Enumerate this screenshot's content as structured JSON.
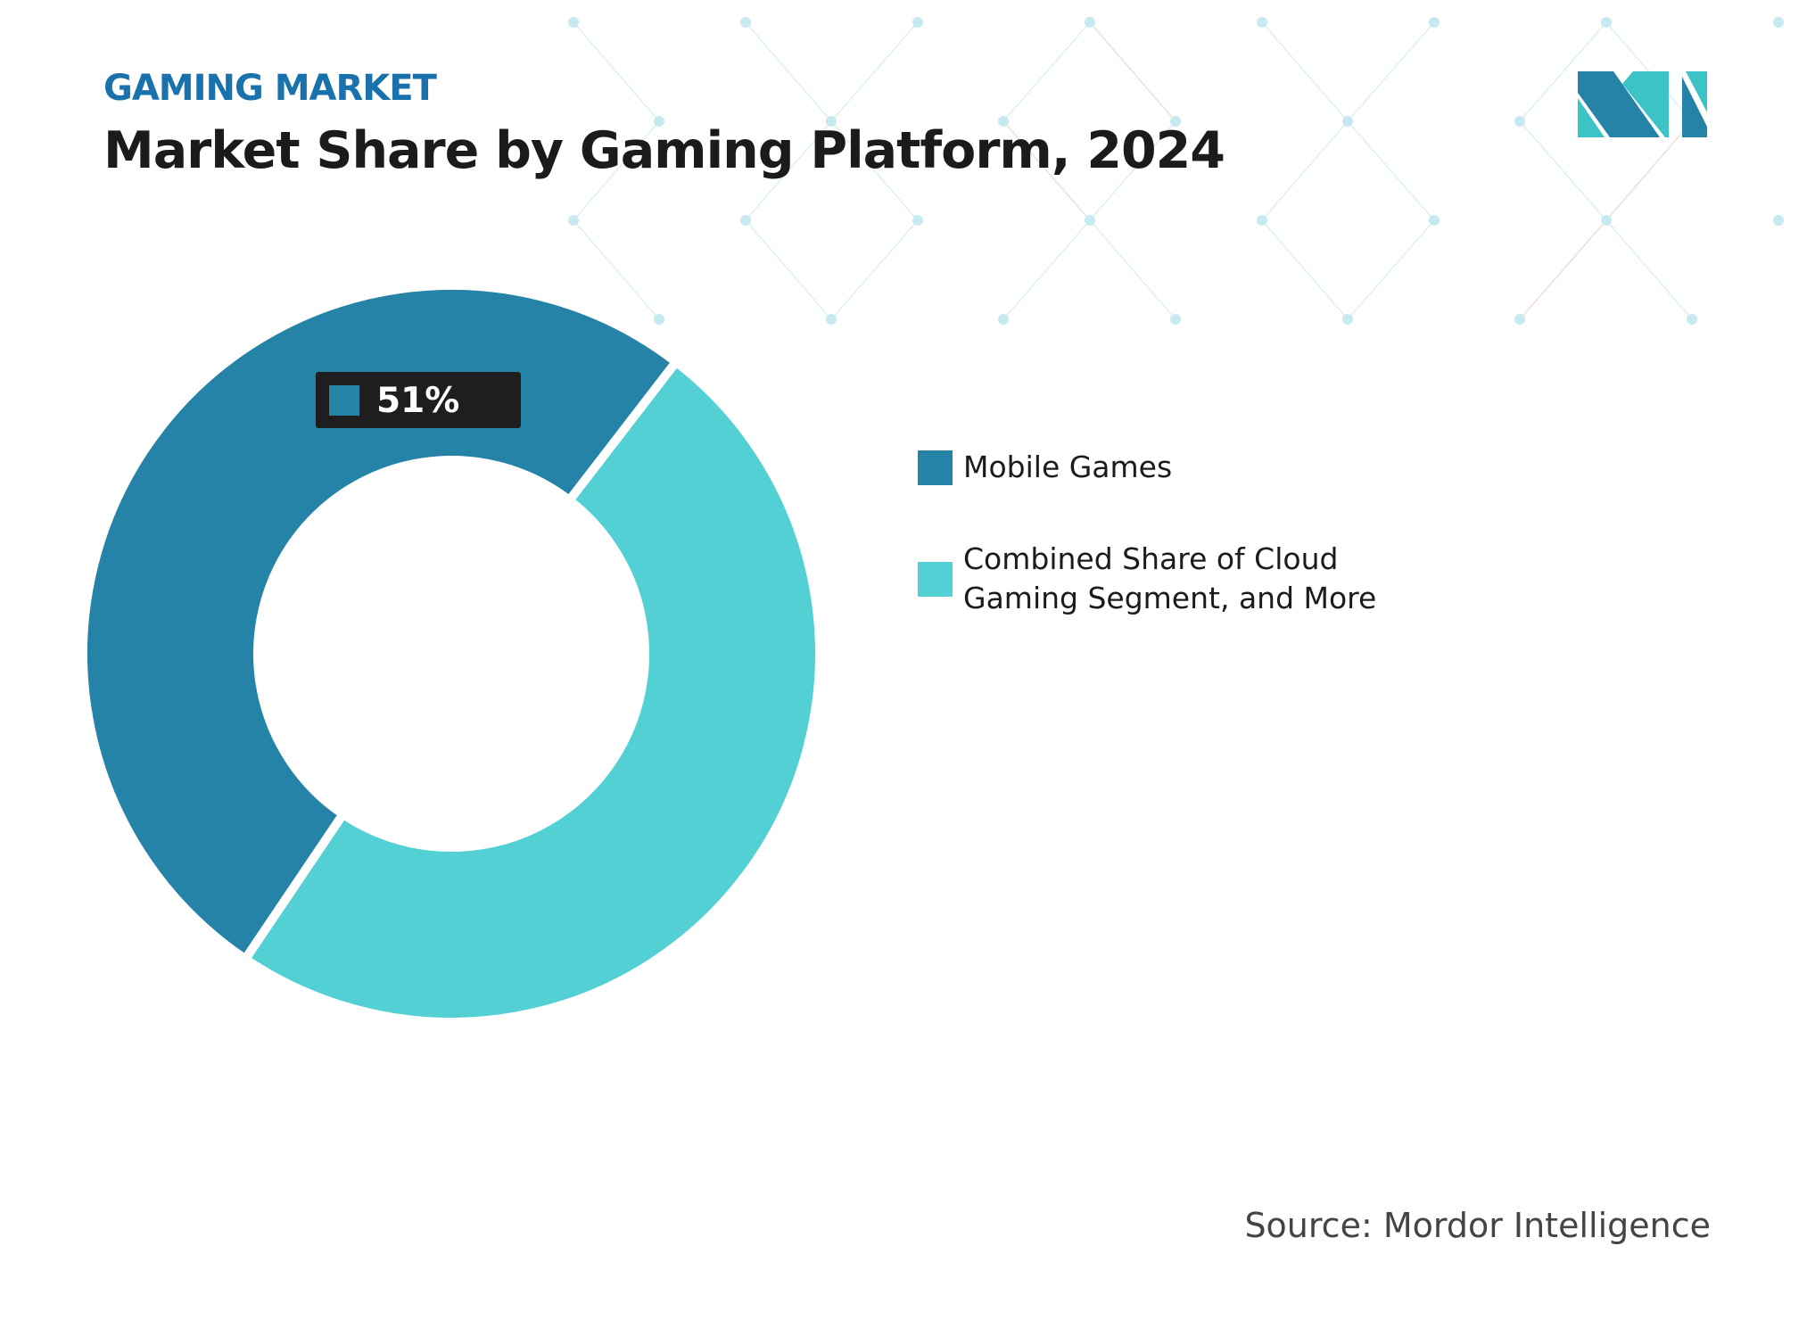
{
  "header": {
    "kicker": "GAMING MARKET",
    "title": "Market Share by Gaming Platform, 2024"
  },
  "logo": {
    "text": "MI"
  },
  "colors": {
    "mobile": "#2683a8",
    "other": "#52d0d3",
    "kicker": "#1a72ad"
  },
  "chart_data": {
    "type": "pie",
    "variant": "donut",
    "title": "Market Share by Gaming Platform, 2024",
    "categories": [
      "Mobile Games",
      "Combined Share of Cloud Gaming Segment, and More"
    ],
    "values": [
      51,
      49
    ],
    "unit": "%",
    "data_labels": [
      {
        "category": "Mobile Games",
        "text": "51%"
      }
    ],
    "legend": {
      "placement": "right",
      "entries": [
        "Mobile Games",
        "Combined Share of Cloud Gaming Segment, and More"
      ]
    }
  },
  "legend": {
    "item1": "Mobile Games",
    "item2_line1": "Combined Share of Cloud",
    "item2_line2": "Gaming Segment, and More"
  },
  "source": "Source: Mordor Intelligence"
}
